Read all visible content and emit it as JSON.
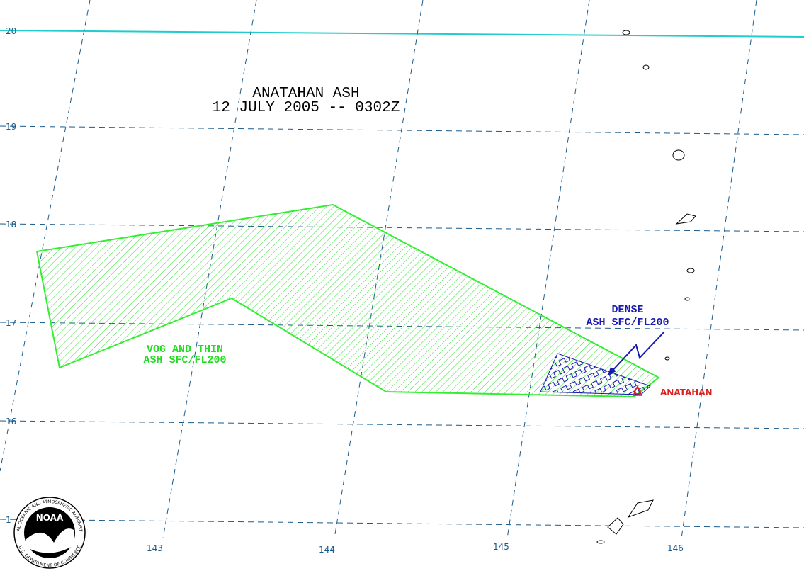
{
  "title": {
    "line1": "ANATAHAN ASH",
    "line2": "12 JULY 2005 -- 0302Z"
  },
  "latitude_labels": [
    "20",
    "19",
    "18",
    "17",
    "16",
    "1"
  ],
  "longitude_labels": [
    "143",
    "144",
    "145",
    "146"
  ],
  "areas": [
    {
      "line1": "VOG AND THIN",
      "line2": "ASH SFC/FL200"
    },
    {
      "line1": "DENSE",
      "line2": "ASH SFC/FL200"
    }
  ],
  "volcano": "ANATAHAN",
  "logo": {
    "name": "NOAA",
    "ring_top": "NATIONAL OCEANIC AND ATMOSPHERIC ADMINISTRATION",
    "ring_bottom": "U.S. DEPARTMENT OF COMMERCE"
  }
}
